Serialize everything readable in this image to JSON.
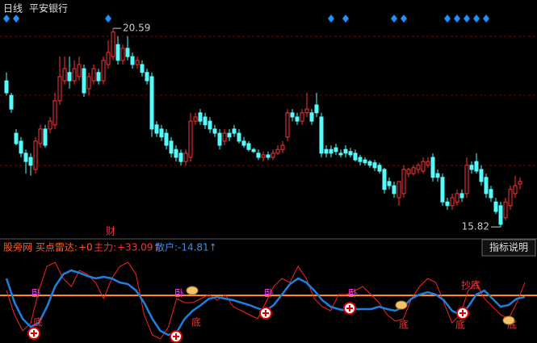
{
  "header": {
    "period": "日线",
    "name": "平安银行"
  },
  "chart_data": [
    {
      "type": "candlestick",
      "ylim": [
        15.59,
        21.27
      ],
      "up_color": "#ff3232",
      "down_color": "#54fcfc",
      "high_label": 20.59,
      "low_label": 15.82,
      "signals": [
        0,
        2,
        21,
        67,
        70,
        80,
        82,
        91,
        93,
        95,
        97,
        99
      ],
      "signal_color": "#1e90ff",
      "note": "财",
      "candles": [
        [
          19.33,
          19.53,
          18.98,
          19.04
        ],
        [
          18.98,
          19.04,
          18.56,
          18.65
        ],
        [
          18.07,
          18.17,
          17.78,
          17.82
        ],
        [
          17.88,
          17.98,
          17.49,
          17.59
        ],
        [
          17.59,
          17.68,
          17.1,
          17.39
        ],
        [
          17.49,
          17.59,
          17.05,
          17.3
        ],
        [
          17.2,
          17.98,
          17.1,
          17.88
        ],
        [
          17.82,
          18.27,
          17.72,
          18.17
        ],
        [
          18.17,
          18.27,
          17.72,
          17.78
        ],
        [
          18.17,
          18.46,
          18.07,
          18.36
        ],
        [
          18.27,
          19.04,
          18.17,
          18.85
        ],
        [
          18.85,
          19.91,
          18.75,
          19.43
        ],
        [
          19.33,
          19.91,
          19.24,
          19.62
        ],
        [
          19.53,
          19.91,
          19.14,
          19.33
        ],
        [
          19.33,
          19.82,
          19.24,
          19.62
        ],
        [
          19.43,
          19.91,
          19.33,
          19.72
        ],
        [
          19.62,
          19.72,
          18.94,
          19.04
        ],
        [
          19.14,
          19.53,
          18.98,
          19.43
        ],
        [
          19.33,
          19.72,
          19.24,
          19.62
        ],
        [
          19.53,
          19.62,
          19.24,
          19.33
        ],
        [
          19.33,
          19.91,
          19.24,
          19.82
        ],
        [
          19.72,
          20.3,
          19.62,
          20.01
        ],
        [
          19.91,
          20.59,
          19.82,
          20.5
        ],
        [
          20.2,
          20.4,
          19.72,
          19.82
        ],
        [
          19.82,
          20.2,
          19.72,
          20.11
        ],
        [
          20.11,
          20.4,
          19.82,
          19.91
        ],
        [
          19.91,
          20.01,
          19.62,
          19.72
        ],
        [
          19.72,
          19.91,
          19.62,
          19.82
        ],
        [
          19.72,
          19.82,
          19.43,
          19.53
        ],
        [
          19.53,
          19.62,
          19.24,
          19.33
        ],
        [
          19.43,
          19.53,
          17.98,
          18.17
        ],
        [
          18.27,
          18.36,
          17.98,
          18.07
        ],
        [
          18.17,
          18.27,
          17.88,
          17.98
        ],
        [
          18.07,
          18.17,
          17.68,
          17.78
        ],
        [
          17.88,
          17.98,
          17.49,
          17.59
        ],
        [
          17.68,
          17.78,
          17.39,
          17.49
        ],
        [
          17.59,
          17.68,
          17.3,
          17.39
        ],
        [
          17.39,
          17.68,
          17.3,
          17.59
        ],
        [
          17.49,
          18.56,
          17.39,
          18.36
        ],
        [
          18.36,
          18.56,
          18.27,
          18.46
        ],
        [
          18.56,
          18.65,
          18.27,
          18.36
        ],
        [
          18.46,
          18.56,
          18.17,
          18.27
        ],
        [
          18.36,
          18.46,
          18.07,
          18.17
        ],
        [
          18.17,
          18.27,
          17.98,
          18.07
        ],
        [
          18.07,
          18.17,
          17.68,
          17.78
        ],
        [
          17.88,
          18.17,
          17.78,
          18.07
        ],
        [
          18.07,
          18.17,
          17.88,
          17.98
        ],
        [
          18.17,
          18.27,
          17.98,
          18.07
        ],
        [
          18.07,
          18.17,
          17.82,
          17.88
        ],
        [
          17.88,
          17.98,
          17.72,
          17.78
        ],
        [
          17.82,
          17.88,
          17.63,
          17.68
        ],
        [
          17.68,
          17.72,
          17.59,
          17.63
        ],
        [
          17.59,
          17.68,
          17.43,
          17.49
        ],
        [
          17.49,
          17.63,
          17.39,
          17.55
        ],
        [
          17.55,
          17.63,
          17.43,
          17.49
        ],
        [
          17.49,
          17.68,
          17.43,
          17.59
        ],
        [
          17.59,
          17.78,
          17.55,
          17.68
        ],
        [
          17.68,
          17.88,
          17.59,
          17.78
        ],
        [
          17.98,
          18.65,
          17.88,
          18.56
        ],
        [
          18.56,
          18.65,
          18.36,
          18.46
        ],
        [
          18.46,
          18.56,
          18.27,
          18.36
        ],
        [
          18.36,
          18.65,
          18.27,
          18.56
        ],
        [
          18.56,
          19.04,
          18.46,
          18.65
        ],
        [
          18.56,
          18.65,
          18.27,
          18.36
        ],
        [
          18.75,
          19.04,
          18.46,
          18.56
        ],
        [
          18.46,
          18.56,
          17.49,
          17.59
        ],
        [
          17.68,
          17.78,
          17.49,
          17.59
        ],
        [
          17.68,
          17.78,
          17.49,
          17.59
        ],
        [
          17.72,
          17.82,
          17.55,
          17.63
        ],
        [
          17.59,
          17.68,
          17.49,
          17.55
        ],
        [
          17.68,
          17.78,
          17.49,
          17.59
        ],
        [
          17.63,
          17.72,
          17.49,
          17.55
        ],
        [
          17.59,
          17.68,
          17.39,
          17.43
        ],
        [
          17.49,
          17.55,
          17.3,
          17.39
        ],
        [
          17.43,
          17.49,
          17.3,
          17.36
        ],
        [
          17.39,
          17.43,
          17.24,
          17.3
        ],
        [
          17.36,
          17.43,
          17.16,
          17.24
        ],
        [
          17.3,
          17.36,
          17.1,
          17.16
        ],
        [
          17.2,
          17.24,
          16.62,
          16.72
        ],
        [
          16.91,
          17.01,
          16.72,
          16.81
        ],
        [
          16.81,
          16.91,
          16.52,
          16.62
        ],
        [
          16.52,
          16.91,
          16.33,
          16.91
        ],
        [
          16.62,
          17.3,
          16.52,
          17.2
        ],
        [
          17.1,
          17.24,
          17.01,
          17.2
        ],
        [
          17.1,
          17.3,
          17.05,
          17.24
        ],
        [
          17.2,
          17.36,
          17.1,
          17.3
        ],
        [
          17.16,
          17.49,
          17.1,
          17.39
        ],
        [
          17.3,
          17.49,
          17.24,
          17.39
        ],
        [
          17.49,
          17.59,
          16.91,
          17.01
        ],
        [
          17.1,
          17.2,
          16.91,
          17.01
        ],
        [
          17.01,
          17.1,
          16.33,
          16.42
        ],
        [
          16.42,
          16.52,
          16.23,
          16.33
        ],
        [
          16.33,
          16.62,
          16.23,
          16.52
        ],
        [
          16.42,
          16.72,
          16.33,
          16.62
        ],
        [
          16.62,
          16.72,
          16.42,
          16.52
        ],
        [
          16.62,
          17.49,
          16.52,
          17.3
        ],
        [
          17.3,
          17.39,
          17.1,
          17.2
        ],
        [
          17.39,
          17.59,
          17.1,
          17.16
        ],
        [
          17.2,
          17.3,
          16.81,
          16.91
        ],
        [
          17.01,
          17.1,
          16.52,
          16.62
        ],
        [
          16.72,
          16.81,
          16.42,
          16.52
        ],
        [
          16.42,
          16.52,
          16.13,
          16.19
        ],
        [
          16.33,
          16.42,
          15.82,
          15.88
        ],
        [
          16.04,
          16.52,
          15.98,
          16.42
        ],
        [
          16.33,
          16.81,
          16.23,
          16.72
        ],
        [
          16.62,
          17.05,
          16.52,
          16.81
        ],
        [
          16.85,
          17.01,
          16.72,
          16.91
        ]
      ]
    },
    {
      "type": "line",
      "title": "股旁网 买点雷达:",
      "title_value": "+0",
      "ylim": [
        0,
        100
      ],
      "level": 54,
      "level_color": "#ff8c1a",
      "series": [
        {
          "name": "主力:",
          "value_label": "+33.09↑",
          "color": "#ff2020",
          "values": [
            60,
            30,
            10,
            20,
            60,
            90,
            95,
            75,
            65,
            85,
            80,
            70,
            50,
            75,
            90,
            95,
            80,
            30,
            5,
            0,
            15,
            50,
            45,
            45,
            50,
            55,
            48,
            55,
            40,
            35,
            30,
            25,
            45,
            65,
            75,
            70,
            90,
            75,
            50,
            40,
            35,
            55,
            55,
            60,
            65,
            55,
            45,
            30,
            22,
            25,
            50,
            65,
            75,
            70,
            45,
            20,
            30,
            60,
            70,
            50,
            40,
            30,
            25,
            45,
            70
          ]
        },
        {
          "name": "散户:",
          "value_label": "-14.81↑",
          "color": "#1e7fe0",
          "values": [
            75,
            45,
            25,
            15,
            20,
            40,
            65,
            80,
            85,
            82,
            78,
            75,
            77,
            75,
            70,
            68,
            60,
            45,
            25,
            10,
            5,
            8,
            25,
            35,
            42,
            50,
            52,
            50,
            48,
            45,
            42,
            38,
            35,
            42,
            55,
            68,
            75,
            70,
            60,
            48,
            40,
            37,
            35,
            37,
            37,
            37,
            40,
            37,
            35,
            40,
            50,
            55,
            58,
            55,
            48,
            35,
            30,
            40,
            55,
            60,
            50,
            40,
            42,
            50,
            52
          ]
        }
      ],
      "signal_labels": [
        "卧",
        "底",
        "卧",
        "底",
        "卧",
        "卧",
        "底",
        "抄底",
        "底",
        "底"
      ]
    }
  ],
  "button": "指标说明"
}
